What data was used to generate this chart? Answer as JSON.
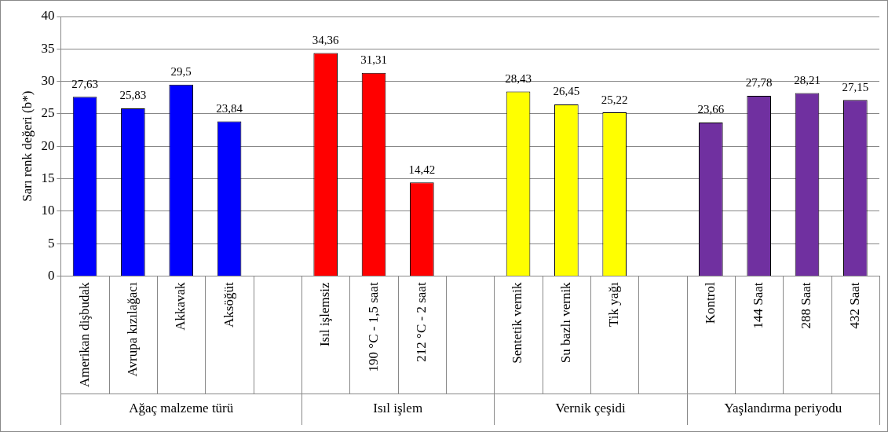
{
  "chart_data": {
    "type": "bar",
    "ylabel": "Sarı renk değeri (b*)",
    "categories": [
      "Amerikan dişbudak",
      "Avrupa kızılağacı",
      "Akkavak",
      "Aksöğüt",
      null,
      "Isıl işlemsiz",
      "190 °C - 1,5 saat",
      "212 °C - 2 saat",
      null,
      "Sentetik vernik",
      "Su bazlı vernik",
      "Tik yağı",
      null,
      "Kontrol",
      "144 Saat",
      "288 Saat",
      "432 Saat"
    ],
    "values": [
      27.63,
      25.83,
      29.5,
      23.84,
      null,
      34.36,
      31.31,
      14.42,
      null,
      28.43,
      26.45,
      25.22,
      null,
      23.66,
      27.78,
      28.21,
      27.15
    ],
    "value_labels": [
      "27,63",
      "25,83",
      "29,5",
      "23,84",
      null,
      "34,36",
      "31,31",
      "14,42",
      null,
      "28,43",
      "26,45",
      "25,22",
      null,
      "23,66",
      "27,78",
      "28,21",
      "27,15"
    ],
    "colors": [
      "#0000ff",
      "#0000ff",
      "#0000ff",
      "#0000ff",
      "#0000ff",
      "#ff0000",
      "#ff0000",
      "#ff0000",
      "#ff0000",
      "#ffff00",
      "#ffff00",
      "#ffff00",
      "#ffff00",
      "#7030a0",
      "#7030a0",
      "#7030a0",
      "#7030a0"
    ],
    "annotations": [
      "Ağaç malzeme türü",
      "Isıl işlem",
      "Vernik çeşidi",
      "Yaşlandırma periyodu"
    ],
    "ylim": [
      0,
      40
    ],
    "yticks": [
      0,
      5,
      10,
      15,
      20,
      25,
      30,
      35,
      40
    ],
    "grid": "y",
    "legend": false
  }
}
